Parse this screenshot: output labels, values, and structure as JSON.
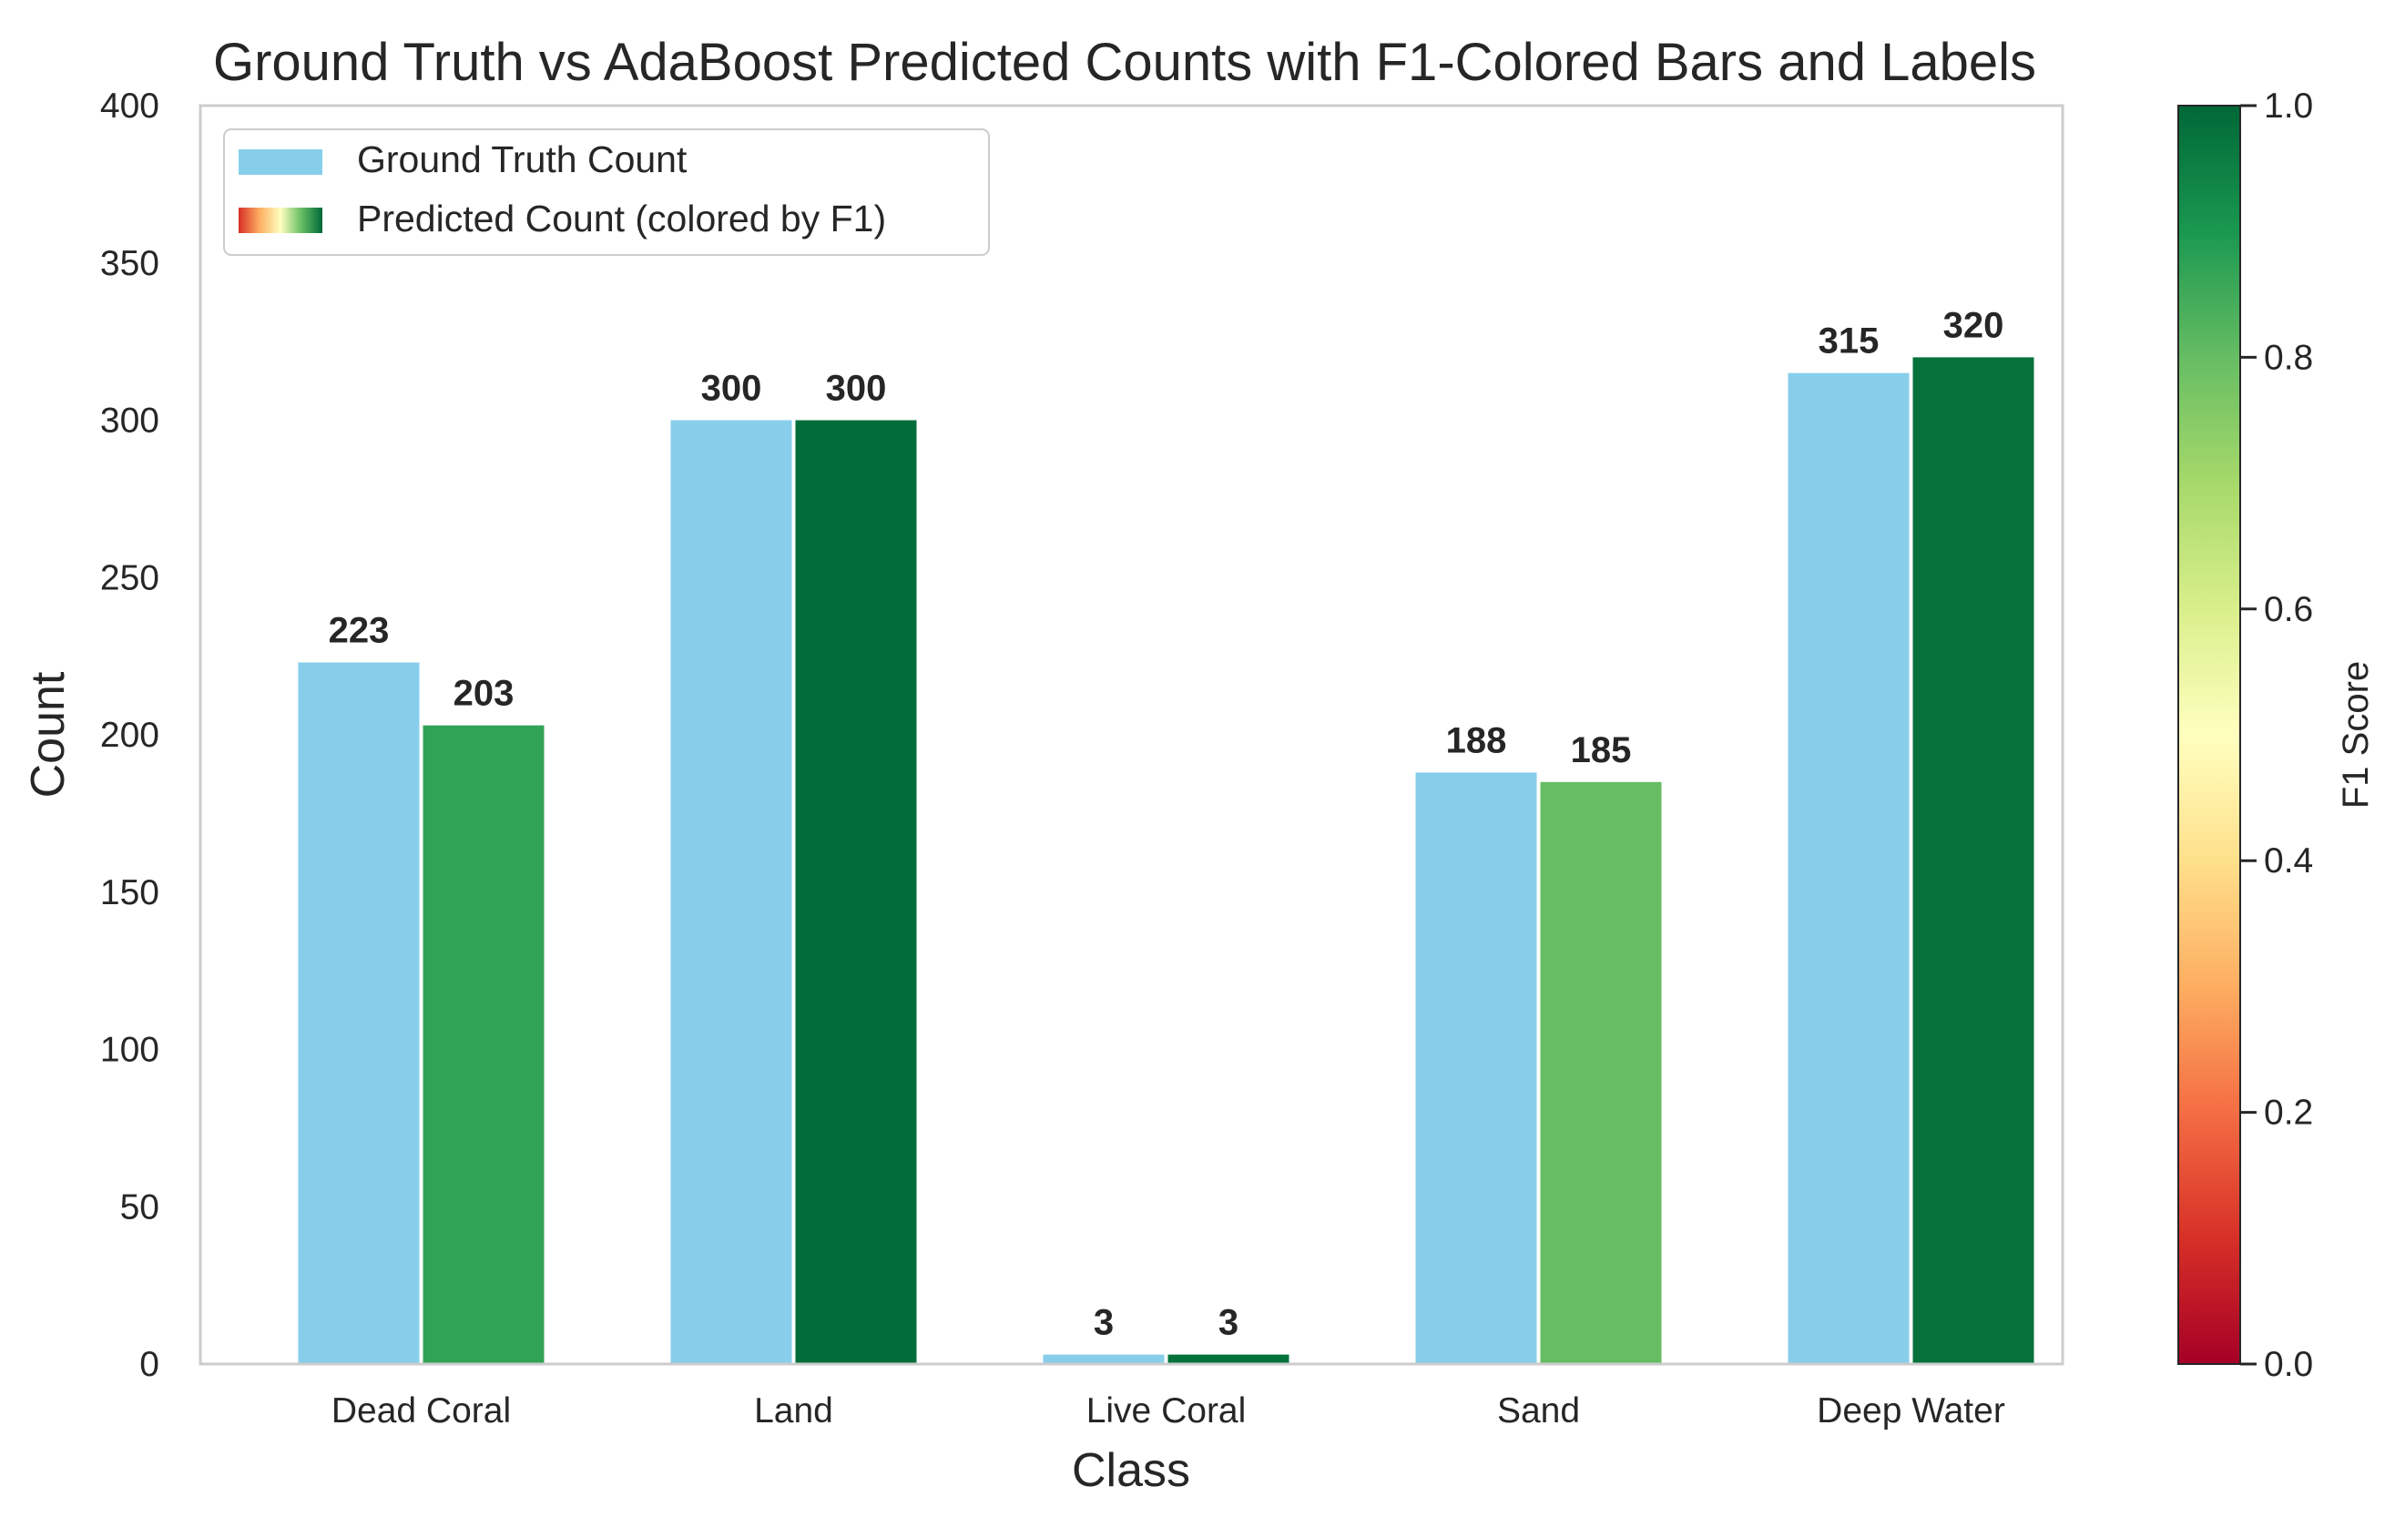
{
  "chart_data": {
    "type": "bar",
    "title": "Ground Truth vs AdaBoost Predicted Counts with F1-Colored Bars and Labels",
    "xlabel": "Class",
    "ylabel": "Count",
    "ylim": [
      0,
      400
    ],
    "yticks": [
      "0",
      "50",
      "100",
      "150",
      "200",
      "250",
      "300",
      "350",
      "400"
    ],
    "categories": [
      "Dead Coral",
      "Land",
      "Live Coral",
      "Sand",
      "Deep Water"
    ],
    "series": [
      {
        "name": "Ground Truth Count",
        "values": [
          223,
          300,
          3,
          188,
          315
        ],
        "color": "#87ceeb"
      },
      {
        "name": "Predicted Count (colored by F1)",
        "values": [
          203,
          300,
          3,
          185,
          320
        ],
        "f1": [
          0.87,
          0.99,
          0.98,
          0.8,
          0.98
        ]
      }
    ],
    "legend_position": "top-left",
    "grid": false,
    "colorbar": {
      "label": "F1 Score",
      "range": [
        0,
        1
      ],
      "ticks": [
        "0.0",
        "0.2",
        "0.4",
        "0.6",
        "0.8",
        "1.0"
      ],
      "colormap": "RdYlGn"
    }
  }
}
